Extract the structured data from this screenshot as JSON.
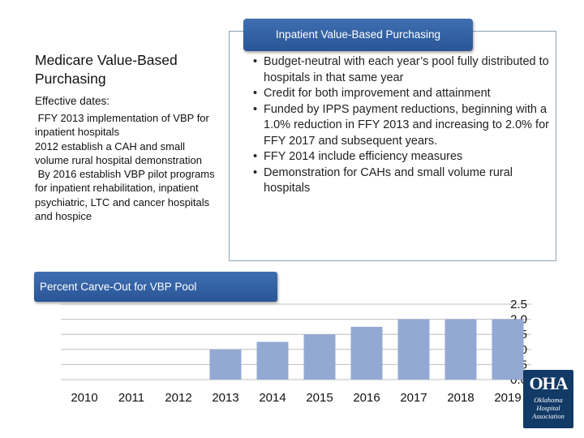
{
  "vbp": {
    "header": "Inpatient Value-Based Purchasing",
    "bullets": [
      "Budget-neutral with each year’s pool fully distributed to hospitals in that same year",
      "Credit for both improvement and attainment",
      "Funded by IPPS payment reductions, beginning with a 1.0% reduction in FFY 2013 and increasing to 2.0% for FFY 2017 and subsequent years.",
      "FFY 2014 include efficiency measures",
      "Demonstration for CAHs and small volume rural hospitals"
    ]
  },
  "medicare": {
    "title": "Medicare Value-Based Purchasing",
    "subtitle": "Effective dates:",
    "paragraphs": [
      " FFY 2013 implementation of VBP for inpatient hospitals",
      "2012 establish a CAH and small volume rural hospital demonstration",
      " By 2016 establish VBP pilot programs for inpatient rehabilitation, inpatient psychiatric, LTC and cancer hospitals and hospice"
    ]
  },
  "chart_data": {
    "type": "bar",
    "title": "Percent Carve-Out for VBP Pool",
    "categories": [
      "2010",
      "2011",
      "2012",
      "2013",
      "2014",
      "2015",
      "2016",
      "2017",
      "2018",
      "2019"
    ],
    "values": [
      0,
      0,
      0,
      1.0,
      1.25,
      1.5,
      1.75,
      2.0,
      2.0,
      2.0
    ],
    "ylim": [
      0,
      2.5
    ],
    "yticks": [
      "0.0",
      "0.5",
      "1.0",
      "1.5",
      "2.0",
      "2.5"
    ],
    "xlabel": "",
    "ylabel": "",
    "grid": true,
    "bar_color": "#93a9d4",
    "grid_color": "#bfbfbf"
  },
  "logo": {
    "mark": "OHA",
    "lines": [
      "Oklahoma",
      "Hospital",
      "Association"
    ]
  }
}
